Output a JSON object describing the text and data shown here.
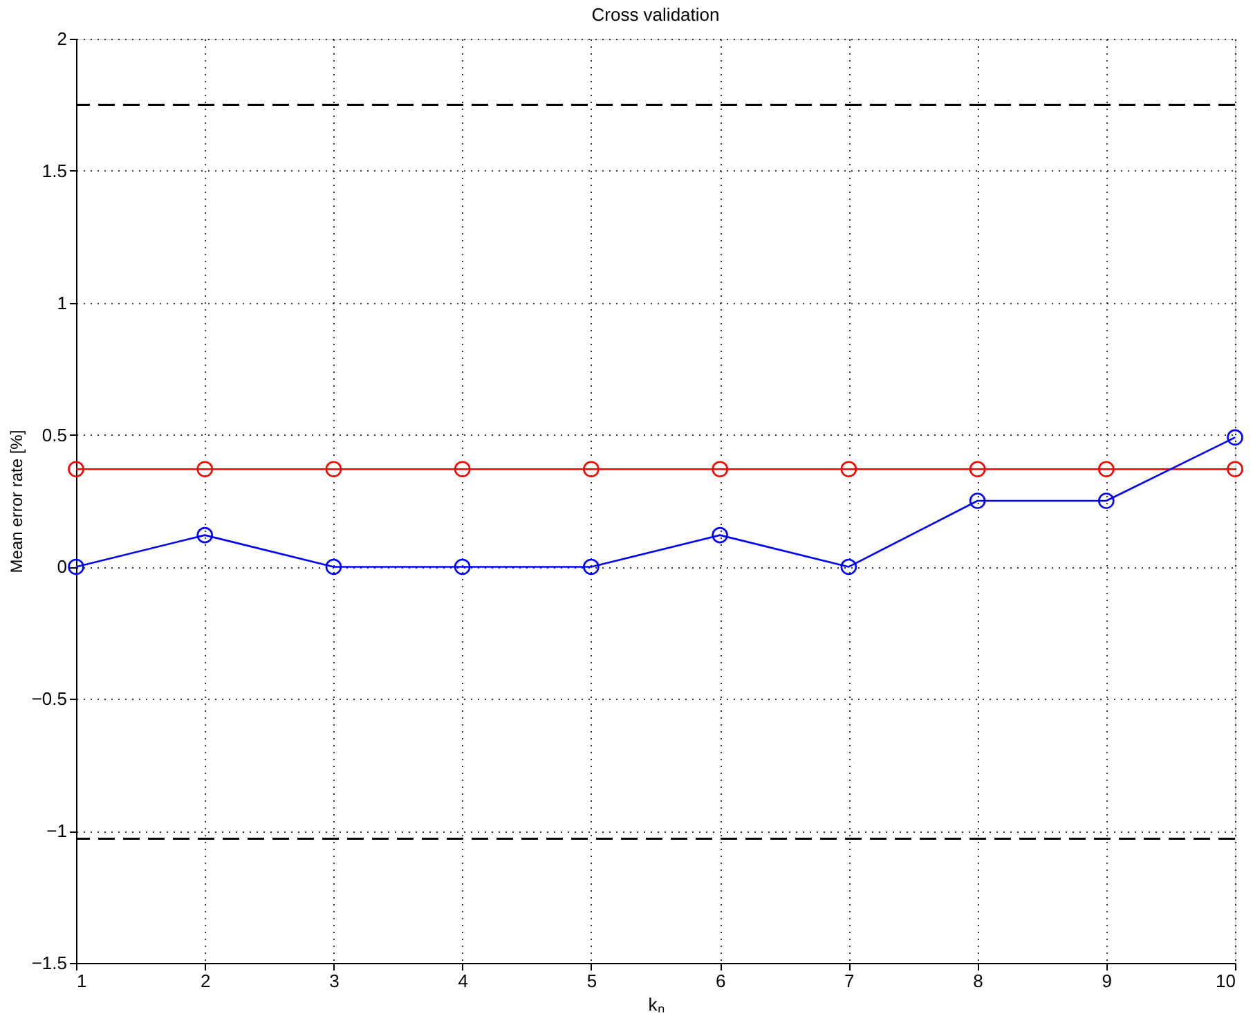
{
  "chart_data": {
    "type": "line",
    "title": "Cross validation",
    "xlabel": "kₙ",
    "ylabel": "Mean error rate [%]",
    "x": [
      1,
      2,
      3,
      4,
      5,
      6,
      7,
      8,
      9,
      10
    ],
    "series": [
      {
        "color": "#ff0000",
        "values": [
          0.37,
          0.37,
          0.37,
          0.37,
          0.37,
          0.37,
          0.37,
          0.37,
          0.37,
          0.37
        ]
      },
      {
        "color": "#0000ff",
        "values": [
          0,
          0.12,
          0,
          0,
          0,
          0.12,
          0,
          0.25,
          0.25,
          0.49
        ]
      }
    ],
    "xlim": [
      1,
      10
    ],
    "xticks": [
      1,
      2,
      3,
      4,
      5,
      6,
      7,
      8,
      9,
      10
    ],
    "ylim": [
      -1.5,
      2
    ],
    "yticks": [
      -1.5,
      -1,
      -0.5,
      0,
      0.5,
      1,
      1.5,
      2
    ],
    "ref_lines": [
      {
        "axis": "y",
        "value": 1.75,
        "color": "#000000",
        "line_style": "dashed"
      },
      {
        "axis": "y",
        "value": -1.03,
        "color": "#000000",
        "line_style": "dashed"
      }
    ],
    "grid": true,
    "marker": "circle",
    "line_style": "solid"
  }
}
